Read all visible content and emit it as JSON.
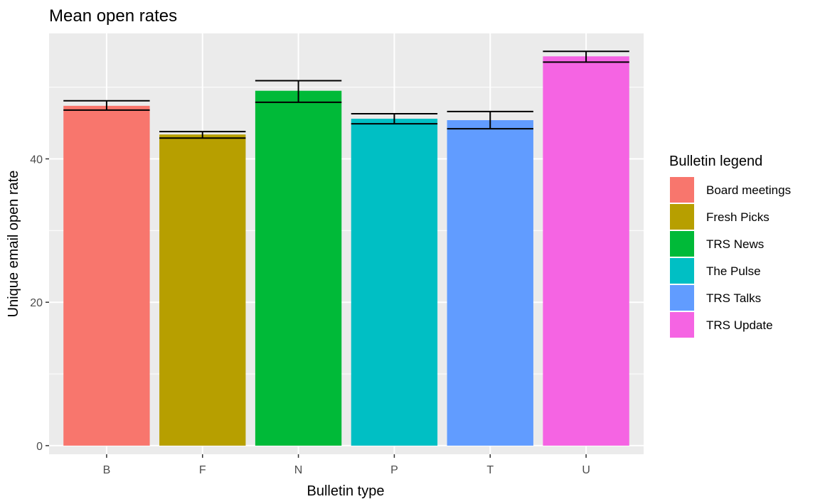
{
  "chart_data": {
    "type": "bar",
    "title": "Mean open rates",
    "xlabel": "Bulletin type",
    "ylabel": "Unique email open rate",
    "categories": [
      "B",
      "F",
      "N",
      "P",
      "T",
      "U"
    ],
    "values": [
      47.4,
      43.4,
      49.5,
      45.6,
      45.4,
      54.3
    ],
    "error_bars": [
      {
        "low": 46.8,
        "high": 48.1
      },
      {
        "low": 42.9,
        "high": 43.8
      },
      {
        "low": 47.9,
        "high": 50.9
      },
      {
        "low": 44.9,
        "high": 46.3
      },
      {
        "low": 44.2,
        "high": 46.6
      },
      {
        "low": 53.5,
        "high": 55.0
      }
    ],
    "colors": [
      "#F8766D",
      "#B79F00",
      "#00BA38",
      "#00BFC4",
      "#619CFF",
      "#F564E3"
    ],
    "ylim": [
      -1.2,
      57.5
    ],
    "y_ticks": [
      0,
      20,
      40
    ],
    "y_tick_labels": [
      "0",
      "20",
      "40"
    ],
    "grid": true,
    "background": "#EBEBEB",
    "legend": {
      "title": "Bulletin legend",
      "placement": "right",
      "entries": [
        "Board meetings",
        "Fresh Picks",
        "TRS News",
        "The Pulse",
        "TRS Talks",
        "TRS Update"
      ]
    }
  }
}
